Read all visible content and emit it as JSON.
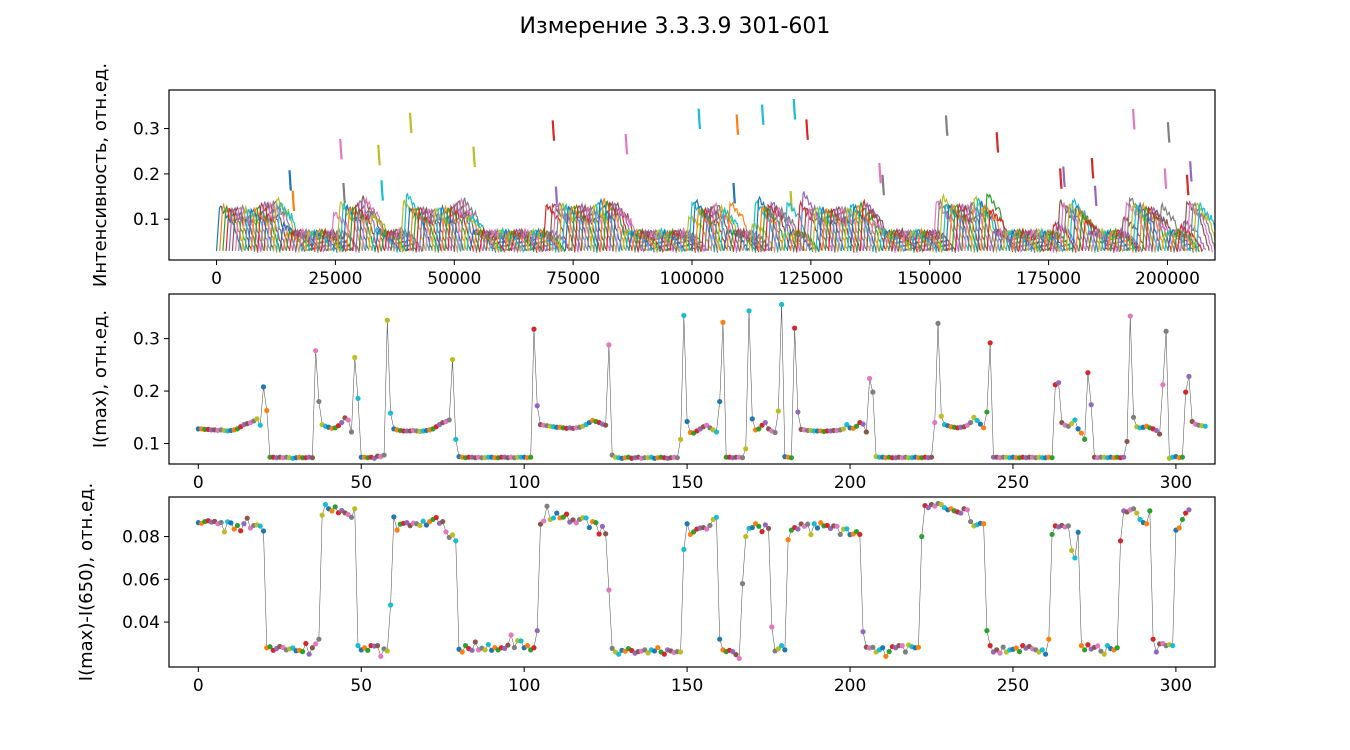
{
  "figure_title": "Измерение 3.3.3.9 301-601",
  "palette": [
    "#1f77b4",
    "#ff7f0e",
    "#2ca02c",
    "#d62728",
    "#9467bd",
    "#8c564b",
    "#e377c2",
    "#7f7f7f",
    "#bcbd22",
    "#17becf"
  ],
  "chart_data": [
    {
      "id": "top",
      "type": "line",
      "title": "",
      "xlabel": "",
      "ylabel": "Интенсивность, отн.ед.",
      "xlim": [
        -10000,
        210000
      ],
      "ylim": [
        0.01,
        0.385
      ],
      "xticks": [
        0,
        25000,
        50000,
        75000,
        100000,
        125000,
        150000,
        175000,
        200000
      ],
      "xtick_labels": [
        "0",
        "25000",
        "50000",
        "75000",
        "100000",
        "125000",
        "150000",
        "175000",
        "200000"
      ],
      "yticks": [
        0.1,
        0.2,
        0.3
      ],
      "ytick_labels": [
        "0.1",
        "0.2",
        "0.3"
      ],
      "series_description": "300 short spectrum segments (one per measurement, ~667 points each), colored cyclically; segment i spans roughly x = 667*i … 667*(i+1) and reaches its peak I(max) of the middle panel",
      "peaks_ref": "middle.values"
    },
    {
      "id": "middle",
      "type": "line",
      "title": "",
      "xlabel": "",
      "ylabel": "I(max), отн.ед.",
      "xlim": [
        -9,
        312
      ],
      "ylim": [
        0.061,
        0.385
      ],
      "xticks": [
        0,
        50,
        100,
        150,
        200,
        250,
        300
      ],
      "xtick_labels": [
        "0",
        "50",
        "100",
        "150",
        "200",
        "250",
        "300"
      ],
      "yticks": [
        0.1,
        0.2,
        0.3
      ],
      "ytick_labels": [
        "0.1",
        "0.2",
        "0.3"
      ],
      "x_start": 0,
      "values": [
        0.128,
        0.128,
        0.127,
        0.127,
        0.126,
        0.126,
        0.125,
        0.126,
        0.125,
        0.124,
        0.125,
        0.126,
        0.128,
        0.132,
        0.136,
        0.138,
        0.14,
        0.143,
        0.147,
        0.135,
        0.208,
        0.163,
        0.074,
        0.074,
        0.073,
        0.074,
        0.073,
        0.074,
        0.073,
        0.072,
        0.073,
        0.074,
        0.073,
        0.073,
        0.074,
        0.073,
        0.277,
        0.18,
        0.136,
        0.133,
        0.131,
        0.129,
        0.13,
        0.134,
        0.14,
        0.149,
        0.145,
        0.122,
        0.264,
        0.186,
        0.074,
        0.074,
        0.073,
        0.074,
        0.072,
        0.076,
        0.075,
        0.078,
        0.335,
        0.158,
        0.128,
        0.126,
        0.125,
        0.124,
        0.124,
        0.124,
        0.125,
        0.124,
        0.123,
        0.124,
        0.125,
        0.126,
        0.128,
        0.132,
        0.136,
        0.14,
        0.142,
        0.145,
        0.26,
        0.108,
        0.075,
        0.074,
        0.073,
        0.074,
        0.074,
        0.073,
        0.074,
        0.073,
        0.073,
        0.074,
        0.074,
        0.073,
        0.073,
        0.074,
        0.074,
        0.073,
        0.074,
        0.073,
        0.074,
        0.074,
        0.074,
        0.073,
        0.074,
        0.318,
        0.172,
        0.136,
        0.135,
        0.134,
        0.133,
        0.132,
        0.131,
        0.131,
        0.13,
        0.129,
        0.13,
        0.129,
        0.13,
        0.131,
        0.133,
        0.136,
        0.14,
        0.144,
        0.142,
        0.14,
        0.137,
        0.135,
        0.288,
        0.078,
        0.074,
        0.073,
        0.072,
        0.073,
        0.074,
        0.072,
        0.073,
        0.074,
        0.072,
        0.073,
        0.073,
        0.074,
        0.072,
        0.073,
        0.074,
        0.073,
        0.072,
        0.073,
        0.074,
        0.073,
        0.108,
        0.344,
        0.142,
        0.121,
        0.12,
        0.124,
        0.128,
        0.132,
        0.135,
        0.13,
        0.126,
        0.122,
        0.18,
        0.331,
        0.074,
        0.074,
        0.073,
        0.074,
        0.074,
        0.073,
        0.09,
        0.353,
        0.147,
        0.126,
        0.128,
        0.135,
        0.14,
        0.128,
        0.124,
        0.121,
        0.162,
        0.365,
        0.075,
        0.074,
        0.073,
        0.32,
        0.16,
        0.127,
        0.126,
        0.125,
        0.125,
        0.124,
        0.124,
        0.124,
        0.123,
        0.124,
        0.124,
        0.125,
        0.125,
        0.126,
        0.128,
        0.136,
        0.13,
        0.129,
        0.133,
        0.14,
        0.137,
        0.122,
        0.224,
        0.198,
        0.075,
        0.074,
        0.074,
        0.073,
        0.074,
        0.073,
        0.073,
        0.074,
        0.073,
        0.074,
        0.073,
        0.073,
        0.074,
        0.073,
        0.073,
        0.074,
        0.073,
        0.074,
        0.14,
        0.329,
        0.152,
        0.136,
        0.134,
        0.132,
        0.131,
        0.13,
        0.131,
        0.132,
        0.135,
        0.14,
        0.15,
        0.144,
        0.137,
        0.13,
        0.16,
        0.292,
        0.074,
        0.074,
        0.073,
        0.074,
        0.074,
        0.073,
        0.074,
        0.073,
        0.073,
        0.074,
        0.073,
        0.074,
        0.074,
        0.073,
        0.074,
        0.073,
        0.073,
        0.074,
        0.073,
        0.212,
        0.216,
        0.14,
        0.135,
        0.133,
        0.138,
        0.145,
        0.128,
        0.12,
        0.108,
        0.235,
        0.174,
        0.074,
        0.073,
        0.074,
        0.074,
        0.073,
        0.074,
        0.073,
        0.074,
        0.073,
        0.074,
        0.104,
        0.343,
        0.15,
        0.132,
        0.13,
        0.131,
        0.133,
        0.13,
        0.128,
        0.125,
        0.118,
        0.212,
        0.314,
        0.072,
        0.074,
        0.075,
        0.073,
        0.074,
        0.198,
        0.228,
        0.142,
        0.137,
        0.135,
        0.134,
        0.133
      ]
    },
    {
      "id": "bottom",
      "type": "line",
      "title": "",
      "xlabel": "",
      "ylabel": "I(max)-I(650), отн.ед.",
      "xlim": [
        -9,
        312
      ],
      "ylim": [
        0.019,
        0.0985
      ],
      "xticks": [
        0,
        50,
        100,
        150,
        200,
        250,
        300
      ],
      "xtick_labels": [
        "0",
        "50",
        "100",
        "150",
        "200",
        "250",
        "300"
      ],
      "yticks": [
        0.04,
        0.06,
        0.08
      ],
      "ytick_labels": [
        "0.04",
        "0.06",
        "0.08"
      ],
      "x_start": 0,
      "values": [
        0.0865,
        0.0862,
        0.087,
        0.0874,
        0.0868,
        0.0871,
        0.086,
        0.0866,
        0.0822,
        0.0869,
        0.0864,
        0.0835,
        0.0852,
        0.0827,
        0.086,
        0.0886,
        0.084,
        0.0852,
        0.0855,
        0.0849,
        0.0826,
        0.028,
        0.0285,
        0.0268,
        0.0276,
        0.0286,
        0.0281,
        0.027,
        0.0275,
        0.0279,
        0.0266,
        0.0268,
        0.0262,
        0.03,
        0.025,
        0.028,
        0.0298,
        0.032,
        0.09,
        0.095,
        0.093,
        0.092,
        0.0939,
        0.0911,
        0.0922,
        0.0911,
        0.0903,
        0.089,
        0.093,
        0.029,
        0.027,
        0.028,
        0.0268,
        0.029,
        0.0288,
        0.029,
        0.024,
        0.0275,
        0.0265,
        0.048,
        0.0892,
        0.083,
        0.0858,
        0.0862,
        0.0865,
        0.0851,
        0.0863,
        0.086,
        0.0852,
        0.0872,
        0.0854,
        0.087,
        0.088,
        0.0889,
        0.0862,
        0.087,
        0.0822,
        0.0796,
        0.0808,
        0.078,
        0.0273,
        0.026,
        0.029,
        0.0276,
        0.0268,
        0.0307,
        0.027,
        0.0278,
        0.027,
        0.0295,
        0.0268,
        0.0281,
        0.027,
        0.028,
        0.0277,
        0.0292,
        0.034,
        0.0281,
        0.0313,
        0.0312,
        0.028,
        0.029,
        0.027,
        0.028,
        0.036,
        0.0858,
        0.0873,
        0.0942,
        0.088,
        0.0887,
        0.091,
        0.0887,
        0.0891,
        0.0905,
        0.0868,
        0.0878,
        0.0864,
        0.088,
        0.0888,
        0.0887,
        0.0842,
        0.087,
        0.0865,
        0.0812,
        0.0848,
        0.0813,
        0.055,
        0.0277,
        0.026,
        0.025,
        0.0268,
        0.0264,
        0.0276,
        0.0267,
        0.0255,
        0.0262,
        0.0264,
        0.027,
        0.0256,
        0.027,
        0.0265,
        0.0281,
        0.026,
        0.025,
        0.027,
        0.0265,
        0.0258,
        0.0262,
        0.026,
        0.074,
        0.086,
        0.081,
        0.0822,
        0.0835,
        0.084,
        0.0842,
        0.0835,
        0.0852,
        0.088,
        0.089,
        0.032,
        0.027,
        0.0262,
        0.0268,
        0.0262,
        0.0248,
        0.023,
        0.058,
        0.08,
        0.0838,
        0.0842,
        0.086,
        0.0848,
        0.0823,
        0.0855,
        0.0838,
        0.0377,
        0.0265,
        0.0275,
        0.029,
        0.027,
        0.0785,
        0.083,
        0.0842,
        0.0835,
        0.0859,
        0.0848,
        0.0858,
        0.0809,
        0.086,
        0.084,
        0.0865,
        0.085,
        0.0852,
        0.0838,
        0.085,
        0.0848,
        0.081,
        0.0835,
        0.0836,
        0.0809,
        0.0812,
        0.0823,
        0.081,
        0.0355,
        0.0283,
        0.0279,
        0.0282,
        0.026,
        0.027,
        0.028,
        0.024,
        0.0262,
        0.0285,
        0.028,
        0.029,
        0.029,
        0.026,
        0.0293,
        0.0285,
        0.028,
        0.0282,
        0.08,
        0.0945,
        0.0935,
        0.095,
        0.0942,
        0.0955,
        0.095,
        0.0935,
        0.0925,
        0.093,
        0.092,
        0.0915,
        0.091,
        0.093,
        0.0925,
        0.087,
        0.085,
        0.0855,
        0.0862,
        0.086,
        0.036,
        0.029,
        0.026,
        0.027,
        0.0255,
        0.0283,
        0.026,
        0.027,
        0.0273,
        0.0279,
        0.0262,
        0.029,
        0.0278,
        0.0286,
        0.0275,
        0.027,
        0.026,
        0.027,
        0.025,
        0.032,
        0.081,
        0.085,
        0.0845,
        0.0852,
        0.0845,
        0.085,
        0.0735,
        0.07,
        0.082,
        0.029,
        0.027,
        0.0294,
        0.0274,
        0.0282,
        0.0289,
        0.0264,
        0.025,
        0.029,
        0.0276,
        0.027,
        0.028,
        0.078,
        0.092,
        0.0915,
        0.0925,
        0.093,
        0.091,
        0.088,
        0.0865,
        0.086,
        0.092,
        0.032,
        0.026,
        0.0298,
        0.03,
        0.029,
        0.0295,
        0.029,
        0.083,
        0.084,
        0.088,
        0.091,
        0.0925
      ]
    }
  ]
}
